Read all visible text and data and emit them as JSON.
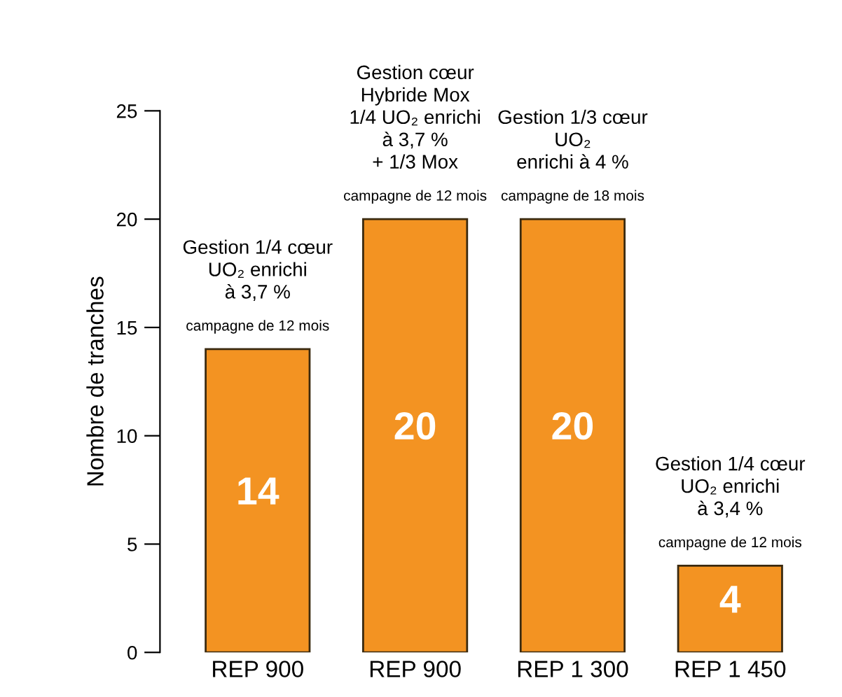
{
  "chart_data": {
    "type": "bar",
    "ylabel": "Nombre de tranches",
    "categories": [
      "REP 900",
      "REP 900",
      "REP 1 300",
      "REP 1 450"
    ],
    "values": [
      14,
      20,
      20,
      4
    ],
    "color": "#f39322",
    "data_labels": true,
    "ylim": [
      0,
      25
    ],
    "yticks": [
      0,
      5,
      10,
      15,
      20,
      25
    ],
    "grid": false,
    "legend": false,
    "annotations": [
      "Gestion 1/4 cœur\nUO₂ enrichi\nà 3,7 %",
      "campagne de 12 mois",
      "Gestion cœur\nHybride Mox\n1/4 UO₂ enrichi\nà 3,7 %\n+ 1/3 Mox",
      "campagne de 12 mois",
      "Gestion 1/3 cœur\nUO₂\nenrichi à 4 %",
      "campagne de 18 mois",
      "Gestion 1/4 cœur\nUO₂ enrichi\nà 3,4 %",
      "campagne de 12 mois"
    ]
  }
}
